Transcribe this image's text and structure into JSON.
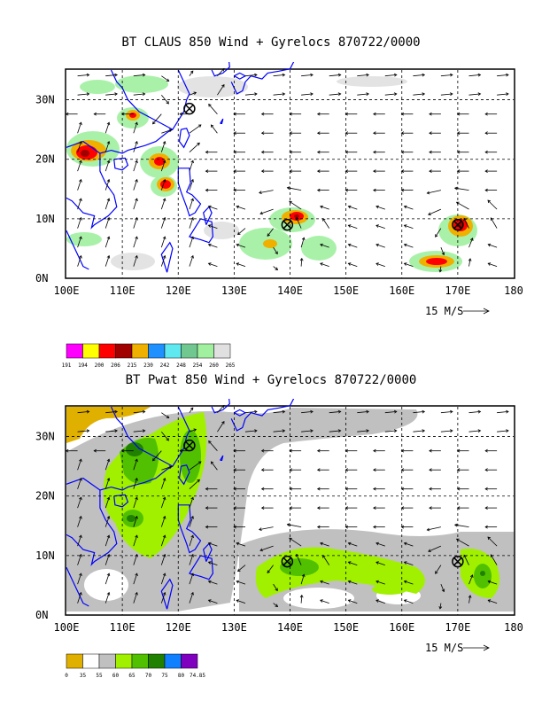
{
  "panel1": {
    "title": "BT CLAUS 850 Wind + Gyrelocs 870722/0000",
    "lat_labels": [
      "0N",
      "10N",
      "20N",
      "30N"
    ],
    "lon_labels": [
      "100E",
      "110E",
      "120E",
      "130E",
      "140E",
      "150E",
      "160E",
      "170E",
      "180"
    ],
    "ref_vector_label": "15 M/S",
    "legend": {
      "labels": [
        "191",
        "194",
        "200",
        "206",
        "215",
        "230",
        "242",
        "248",
        "254",
        "260",
        "265"
      ],
      "colors": [
        "#ff00ff",
        "#ffff00",
        "#ff0000",
        "#a00000",
        "#f0b000",
        "#1e90ff",
        "#60e8f0",
        "#70c890",
        "#a0f0a0",
        "#e0e0e0"
      ]
    },
    "gyre_markers": [
      {
        "lon": 122,
        "lat": 28.5
      },
      {
        "lon": 139.5,
        "lat": 9
      },
      {
        "lon": 170,
        "lat": 9
      }
    ]
  },
  "panel2": {
    "title": "BT Pwat 850 Wind + Gyrelocs 870722/0000",
    "lat_labels": [
      "0N",
      "10N",
      "20N",
      "30N"
    ],
    "lon_labels": [
      "100E",
      "110E",
      "120E",
      "130E",
      "140E",
      "150E",
      "160E",
      "170E",
      "180"
    ],
    "ref_vector_label": "15 M/S",
    "legend": {
      "labels": [
        "0",
        "35",
        "55",
        "60",
        "65",
        "70",
        "75",
        "80",
        "74.85"
      ],
      "colors": [
        "#e0b000",
        "#ffffff",
        "#c0c0c0",
        "#a0f000",
        "#50c000",
        "#208000",
        "#1080ff",
        "#8000c0"
      ]
    },
    "gyre_markers": [
      {
        "lon": 122,
        "lat": 28.5
      },
      {
        "lon": 139.5,
        "lat": 9
      },
      {
        "lon": 170,
        "lat": 9
      }
    ]
  }
}
